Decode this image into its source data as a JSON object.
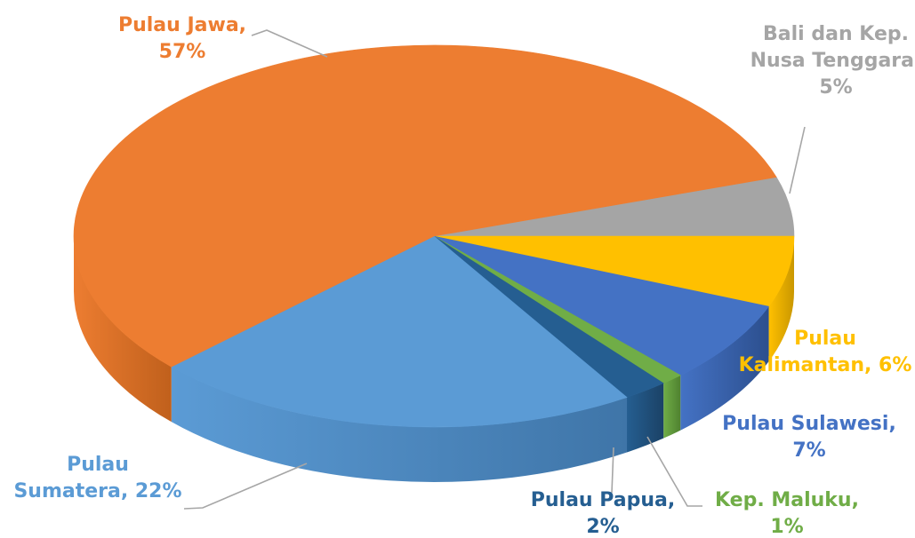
{
  "chart_data": {
    "type": "pie",
    "title": "",
    "slices": [
      {
        "name": "Bali dan Kep. Nusa Tenggara",
        "value": 5,
        "color": "#a5a5a5",
        "side_color": "#8a8a8a",
        "label_lines": [
          "Bali dan Kep.",
          "Nusa Tenggara,",
          "5%"
        ]
      },
      {
        "name": "Pulau Kalimantan",
        "value": 6,
        "color": "#ffc000",
        "side_color": "#c99700",
        "label_lines": [
          "Pulau",
          "Kalimantan, 6%"
        ]
      },
      {
        "name": "Pulau Sulawesi",
        "value": 7,
        "color": "#4472c4",
        "side_color": "#2c4f8e",
        "label_lines": [
          "Pulau Sulawesi,",
          "7%"
        ]
      },
      {
        "name": "Kep. Maluku",
        "value": 1,
        "color": "#70ad47",
        "side_color": "#4f8230",
        "label_lines": [
          "Kep. Maluku,",
          "1%"
        ]
      },
      {
        "name": "Pulau Papua",
        "value": 2,
        "color": "#255e91",
        "side_color": "#1b4266",
        "label_lines": [
          "Pulau Papua,",
          "2%"
        ]
      },
      {
        "name": "Pulau Sumatera",
        "value": 22,
        "color": "#5b9bd5",
        "side_color": "#3f75a8",
        "label_lines": [
          "Pulau",
          "Sumatera, 22%"
        ]
      },
      {
        "name": "Pulau Jawa",
        "value": 57,
        "color": "#ed7d31",
        "side_color": "#c0601c",
        "label_lines": [
          "Pulau Jawa,",
          "57%"
        ]
      }
    ],
    "legend": "none",
    "style": "3d-pie-with-callout-labels"
  }
}
